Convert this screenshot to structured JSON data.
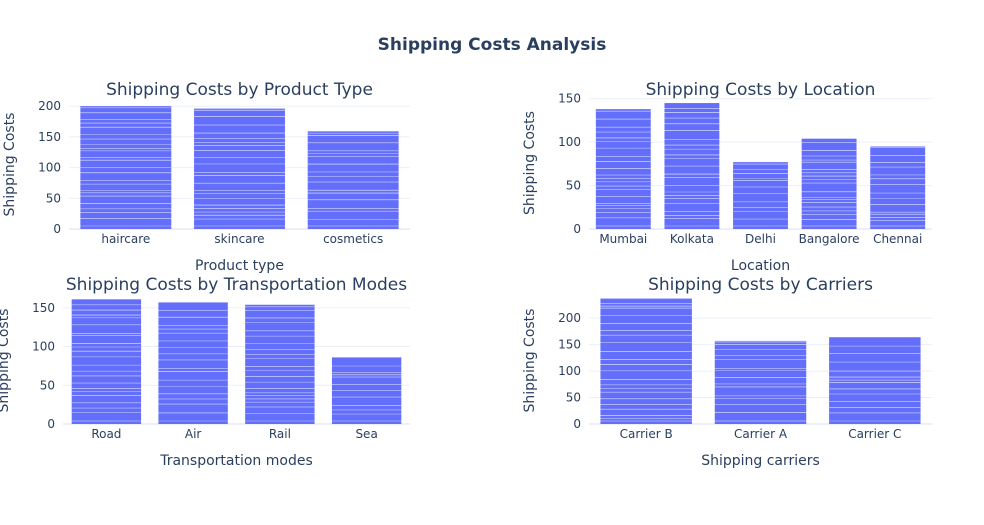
{
  "title": "Shipping Costs Analysis",
  "colors": {
    "bar": "#636efa",
    "stripe": "#ffffff",
    "text": "#2a3f5f",
    "grid": "#ebf0f8"
  },
  "chart_data": [
    {
      "type": "bar",
      "title": "Shipping Costs by Product Type",
      "xlabel": "Product type",
      "ylabel": "Shipping Costs",
      "categories": [
        "haircare",
        "skincare",
        "cosmetics"
      ],
      "values": [
        200,
        196,
        159
      ],
      "ylim": [
        0,
        210
      ],
      "yticks": [
        0,
        50,
        100,
        150,
        200
      ]
    },
    {
      "type": "bar",
      "title": "Shipping Costs by Location",
      "xlabel": "Location",
      "ylabel": "Shipping Costs",
      "categories": [
        "Mumbai",
        "Kolkata",
        "Delhi",
        "Bangalore",
        "Chennai"
      ],
      "values": [
        138,
        145,
        77,
        104,
        95
      ],
      "ylim": [
        0,
        152
      ],
      "yticks": [
        0,
        50,
        100,
        150
      ]
    },
    {
      "type": "bar",
      "title": "Shipping Costs by Transportation Modes",
      "xlabel": "Transportation modes",
      "ylabel": "Shipping Costs",
      "categories": [
        "Road",
        "Air",
        "Rail",
        "Sea"
      ],
      "values": [
        161,
        157,
        154,
        86
      ],
      "ylim": [
        0,
        164
      ],
      "yticks": [
        0,
        50,
        100,
        150
      ]
    },
    {
      "type": "bar",
      "title": "Shipping Costs by Carriers",
      "xlabel": "Shipping carriers",
      "ylabel": "Shipping Costs",
      "categories": [
        "Carrier B",
        "Carrier A",
        "Carrier C"
      ],
      "values": [
        237,
        157,
        164
      ],
      "ylim": [
        0,
        240
      ],
      "yticks": [
        0,
        50,
        100,
        150,
        200
      ]
    }
  ]
}
